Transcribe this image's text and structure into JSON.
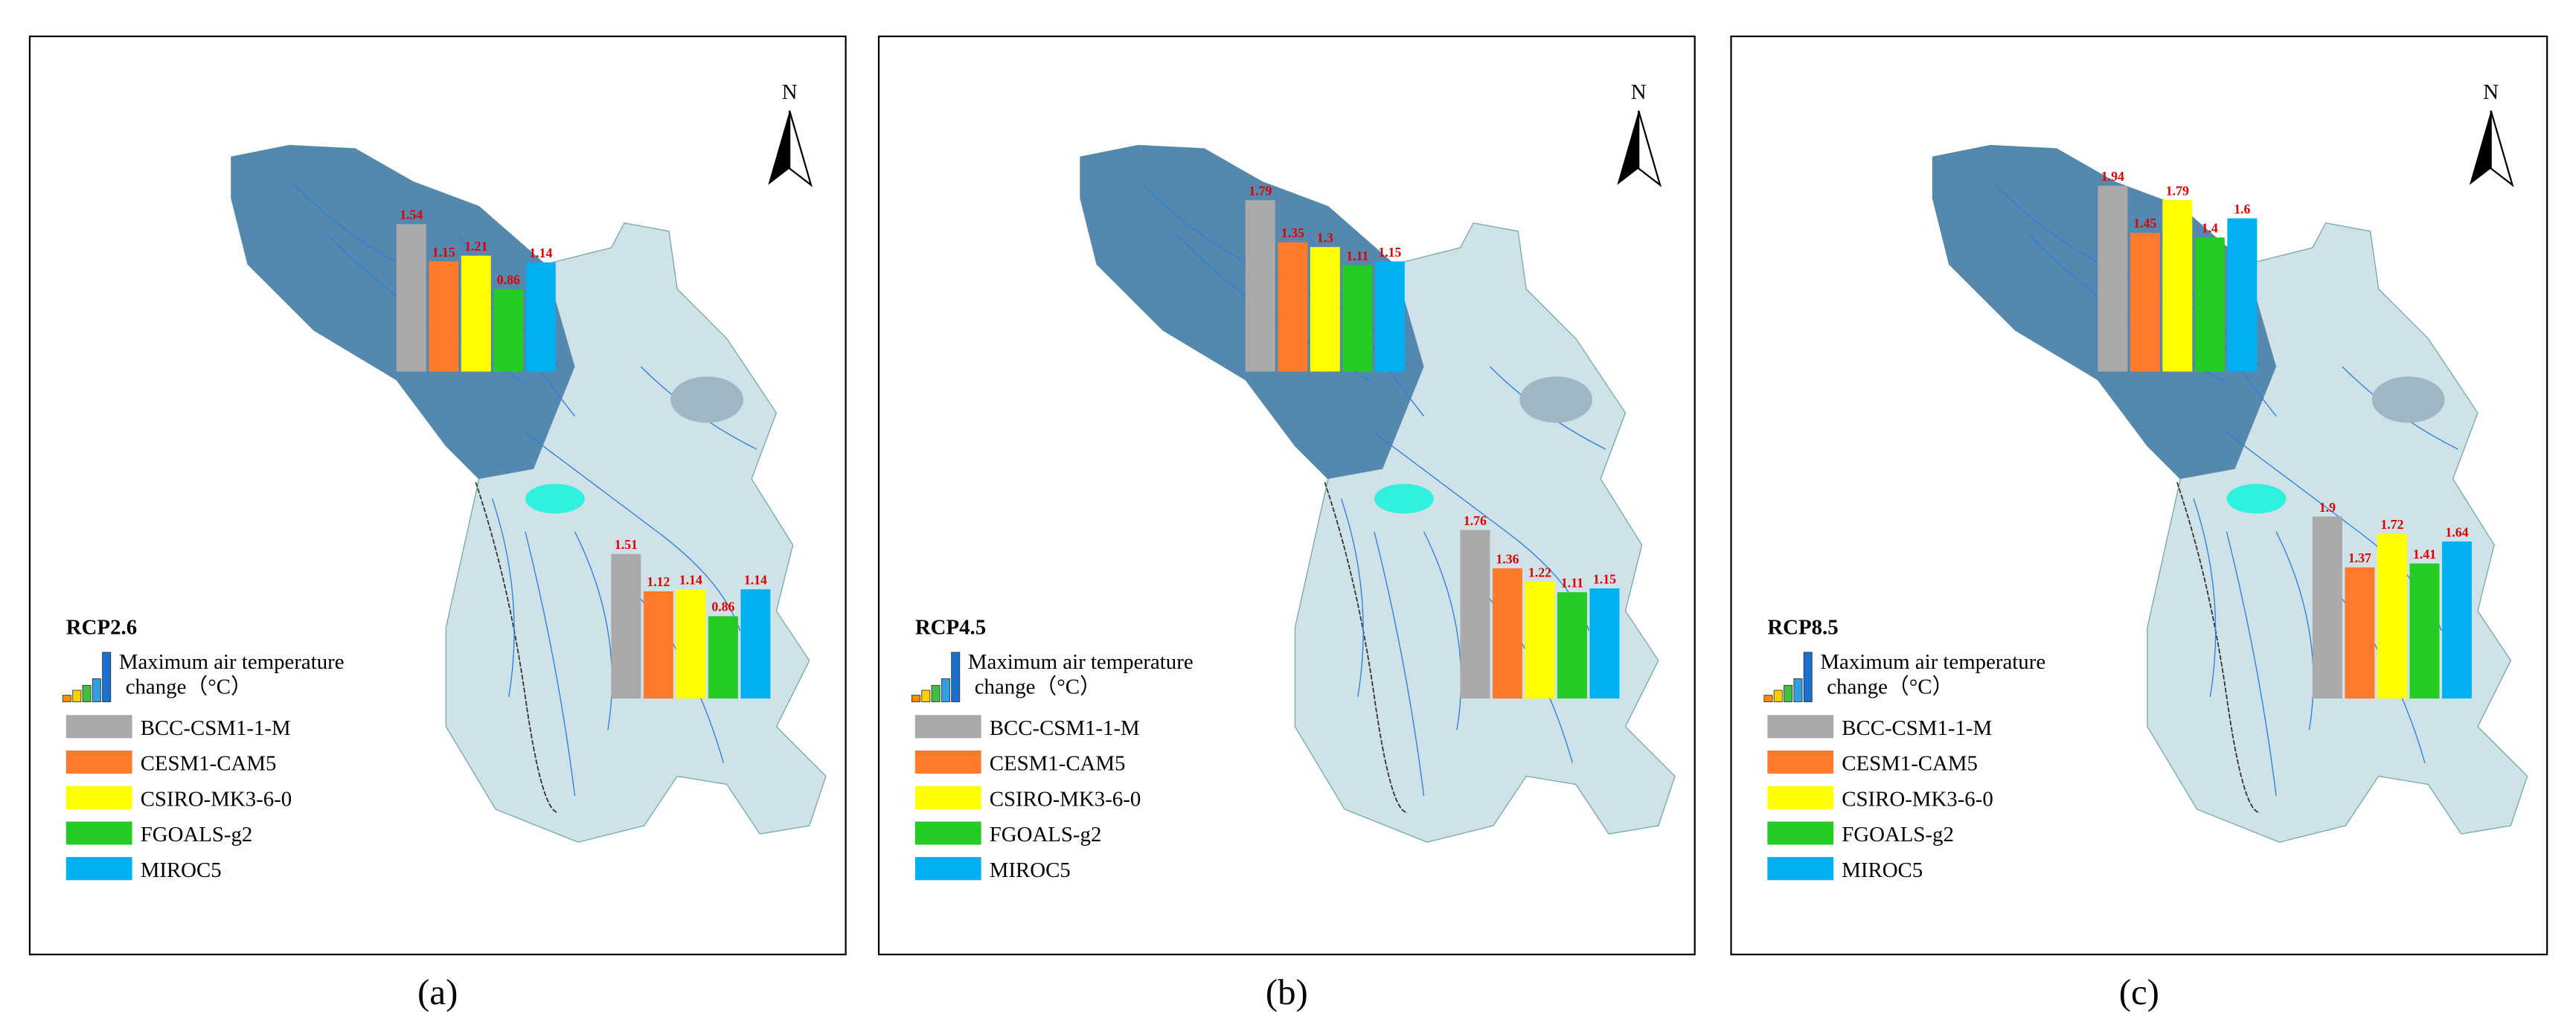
{
  "north": "N",
  "legend_title": [
    "Maximum air temperature",
    "change（°C）"
  ],
  "models": [
    "BCC-CSM1-1-M",
    "CESM1-CAM5",
    "CSIRO-MK3-6-0",
    "FGOALS-g2",
    "MIROC5"
  ],
  "colors": [
    "#a9a9a9",
    "#ff7a2a",
    "#ffff00",
    "#22cc22",
    "#00b0f0"
  ],
  "panels": [
    {
      "caption": "(a)",
      "scenario": "RCP2.6",
      "upper_values": [
        1.54,
        1.15,
        1.21,
        0.86,
        1.14
      ],
      "lower_values": [
        1.51,
        1.12,
        1.14,
        0.86,
        1.14
      ]
    },
    {
      "caption": "(b)",
      "scenario": "RCP4.5",
      "upper_values": [
        1.79,
        1.35,
        1.3,
        1.11,
        1.15
      ],
      "lower_values": [
        1.76,
        1.36,
        1.22,
        1.11,
        1.15
      ]
    },
    {
      "caption": "(c)",
      "scenario": "RCP8.5",
      "upper_values": [
        1.94,
        1.45,
        1.79,
        1.4,
        1.6
      ],
      "lower_values": [
        1.9,
        1.37,
        1.72,
        1.41,
        1.64
      ]
    }
  ]
}
